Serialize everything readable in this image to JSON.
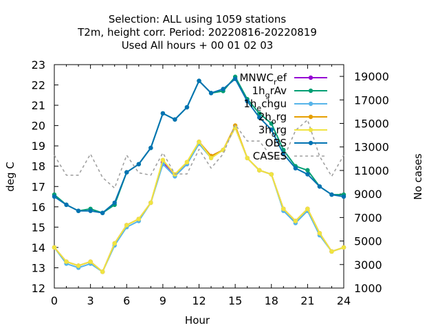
{
  "chart_data": {
    "type": "line",
    "title_lines": [
      "Selection: ALL using  1059 stations",
      "T2m, height corr.    Period: 20220816-20220819",
      "Used  All hours  + 00 01 02 03"
    ],
    "xlabel": "Hour",
    "ylabel": "deg C",
    "y2label": "No cases",
    "xlim": [
      0,
      24
    ],
    "ylim": [
      12,
      23
    ],
    "y2lim": [
      1000,
      20000
    ],
    "xticks": [
      "0",
      "3",
      "6",
      "9",
      "12",
      "15",
      "18",
      "21",
      "24"
    ],
    "yticks": [
      "12",
      "13",
      "14",
      "15",
      "16",
      "17",
      "18",
      "19",
      "20",
      "21",
      "22",
      "23"
    ],
    "y2ticks": [
      "1000",
      "3000",
      "5000",
      "7000",
      "9000",
      "11000",
      "13000",
      "15000",
      "17000",
      "19000"
    ],
    "grid": false,
    "legend_position": "top-right",
    "x": [
      0,
      1,
      2,
      3,
      4,
      5,
      6,
      7,
      8,
      9,
      10,
      11,
      12,
      13,
      14,
      15,
      16,
      17,
      18,
      19,
      20,
      21,
      22,
      23,
      24
    ],
    "series": [
      {
        "name": "MNWC_ref",
        "legend_main": "MNWC",
        "legend_sub": "r",
        "legend_tail": "ef",
        "color": "#9400d3",
        "dash": "",
        "axis": "left",
        "values": [
          14.0,
          13.3,
          13.1,
          13.3,
          12.8,
          14.2,
          15.1,
          15.4,
          16.2,
          18.2,
          17.6,
          18.1,
          19.2,
          18.5,
          18.8,
          19.9,
          18.4,
          17.8,
          17.6,
          15.9,
          15.3,
          15.9,
          14.7,
          13.8,
          14.0
        ]
      },
      {
        "name": "1h_grAv",
        "legend_main": "1h",
        "legend_sub": "g",
        "legend_tail": "rAv",
        "color": "#009e73",
        "dash": "",
        "axis": "left",
        "values": [
          16.6,
          16.1,
          15.8,
          15.9,
          15.7,
          16.1,
          17.7,
          18.1,
          18.9,
          20.6,
          20.3,
          20.9,
          22.2,
          21.6,
          21.7,
          22.4,
          21.3,
          20.6,
          20.1,
          18.8,
          18.0,
          17.8,
          17.0,
          16.6,
          16.6
        ]
      },
      {
        "name": "1h_echgu",
        "legend_main": "1h",
        "legend_sub": "e",
        "legend_tail": "chgu",
        "color": "#56b4e9",
        "dash": "",
        "axis": "left",
        "values": [
          14.0,
          13.2,
          13.0,
          13.2,
          12.8,
          14.1,
          15.0,
          15.3,
          16.2,
          18.1,
          17.5,
          18.1,
          19.1,
          18.4,
          18.8,
          19.9,
          18.4,
          17.8,
          17.6,
          15.8,
          15.2,
          15.8,
          14.6,
          13.8,
          14.0
        ]
      },
      {
        "name": "2h_org",
        "legend_main": "2h",
        "legend_sub": "o",
        "legend_tail": "rg",
        "color": "#e69f00",
        "dash": "",
        "axis": "left",
        "values": [
          14.0,
          13.3,
          13.1,
          13.3,
          12.8,
          14.2,
          15.1,
          15.4,
          16.2,
          18.3,
          17.6,
          18.2,
          19.2,
          18.5,
          18.8,
          20.0,
          18.4,
          17.8,
          17.6,
          15.9,
          15.3,
          15.9,
          14.7,
          13.8,
          14.0
        ]
      },
      {
        "name": "3h_org",
        "legend_main": "3h",
        "legend_sub": "o",
        "legend_tail": "rg",
        "color": "#f0e442",
        "dash": "",
        "axis": "left",
        "values": [
          14.0,
          13.3,
          13.1,
          13.3,
          12.8,
          14.2,
          15.1,
          15.4,
          16.2,
          18.3,
          17.6,
          18.2,
          19.2,
          18.4,
          18.8,
          19.9,
          18.4,
          17.8,
          17.6,
          15.9,
          15.3,
          15.9,
          14.7,
          13.8,
          14.0
        ]
      },
      {
        "name": "OBS",
        "legend_main": "OBS",
        "legend_sub": "",
        "legend_tail": "",
        "color": "#0072b2",
        "dash": "",
        "axis": "left",
        "values": [
          16.5,
          16.1,
          15.8,
          15.8,
          15.7,
          16.2,
          17.7,
          18.1,
          18.9,
          20.6,
          20.3,
          20.9,
          22.2,
          21.6,
          21.8,
          22.3,
          21.2,
          20.4,
          19.8,
          18.6,
          17.9,
          17.6,
          17.0,
          16.6,
          16.5
        ]
      },
      {
        "name": "CASES",
        "legend_main": "CASES",
        "legend_sub": "",
        "legend_tail": "",
        "color": "#a0a0a0",
        "dash": "4,4",
        "axis": "right",
        "values": [
          12300,
          10600,
          10600,
          12400,
          10400,
          9500,
          12300,
          10800,
          10600,
          12500,
          10700,
          10700,
          12800,
          11200,
          12400,
          14900,
          13500,
          13500,
          12200,
          12000,
          14400,
          15300,
          12200,
          10500,
          12300
        ]
      }
    ]
  }
}
